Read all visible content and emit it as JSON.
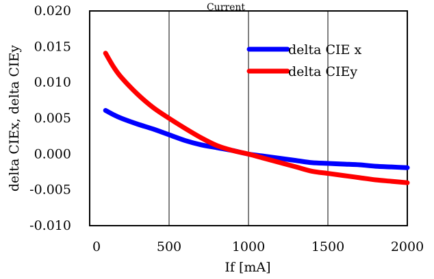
{
  "chart_data": {
    "type": "line",
    "title": "Current",
    "xlabel": "If [mA]",
    "ylabel": "delta CIEx, delta CIEy",
    "xlim": [
      0,
      2000
    ],
    "ylim": [
      -0.01,
      0.02
    ],
    "x_ticks": [
      "0",
      "500",
      "1000",
      "1500",
      "2000"
    ],
    "y_ticks": [
      "0.020",
      "0.015",
      "0.010",
      "0.005",
      "0.000",
      "-0.005",
      "-0.010"
    ],
    "x_tick_values": [
      0,
      500,
      1000,
      1500,
      2000
    ],
    "y_tick_values": [
      0.02,
      0.015,
      0.01,
      0.005,
      0.0,
      -0.005,
      -0.01
    ],
    "grid": "vertical",
    "legend_position": "top-right",
    "series": [
      {
        "name": "delta CIE x",
        "color": "#0000ff",
        "x": [
          100,
          150,
          200,
          300,
          400,
          500,
          600,
          700,
          800,
          900,
          1000,
          1100,
          1200,
          1300,
          1400,
          1500,
          1600,
          1700,
          1800,
          1900,
          2000
        ],
        "y": [
          0.0061,
          0.0055,
          0.005,
          0.0042,
          0.0035,
          0.0027,
          0.0019,
          0.0013,
          0.0009,
          0.0005,
          0.0,
          -0.0003,
          -0.0006,
          -0.0009,
          -0.0012,
          -0.0013,
          -0.0014,
          -0.0015,
          -0.0017,
          -0.0018,
          -0.0019
        ]
      },
      {
        "name": "delta CIEy",
        "color": "#ff0000",
        "x": [
          100,
          150,
          200,
          300,
          400,
          500,
          600,
          700,
          800,
          900,
          1000,
          1100,
          1200,
          1300,
          1400,
          1500,
          1600,
          1700,
          1800,
          1900,
          2000
        ],
        "y": [
          0.0141,
          0.0122,
          0.0107,
          0.0084,
          0.0065,
          0.005,
          0.0036,
          0.0023,
          0.0012,
          0.0005,
          0.0,
          -0.0006,
          -0.0012,
          -0.0018,
          -0.0024,
          -0.0027,
          -0.003,
          -0.0033,
          -0.0036,
          -0.0038,
          -0.004
        ]
      }
    ]
  }
}
